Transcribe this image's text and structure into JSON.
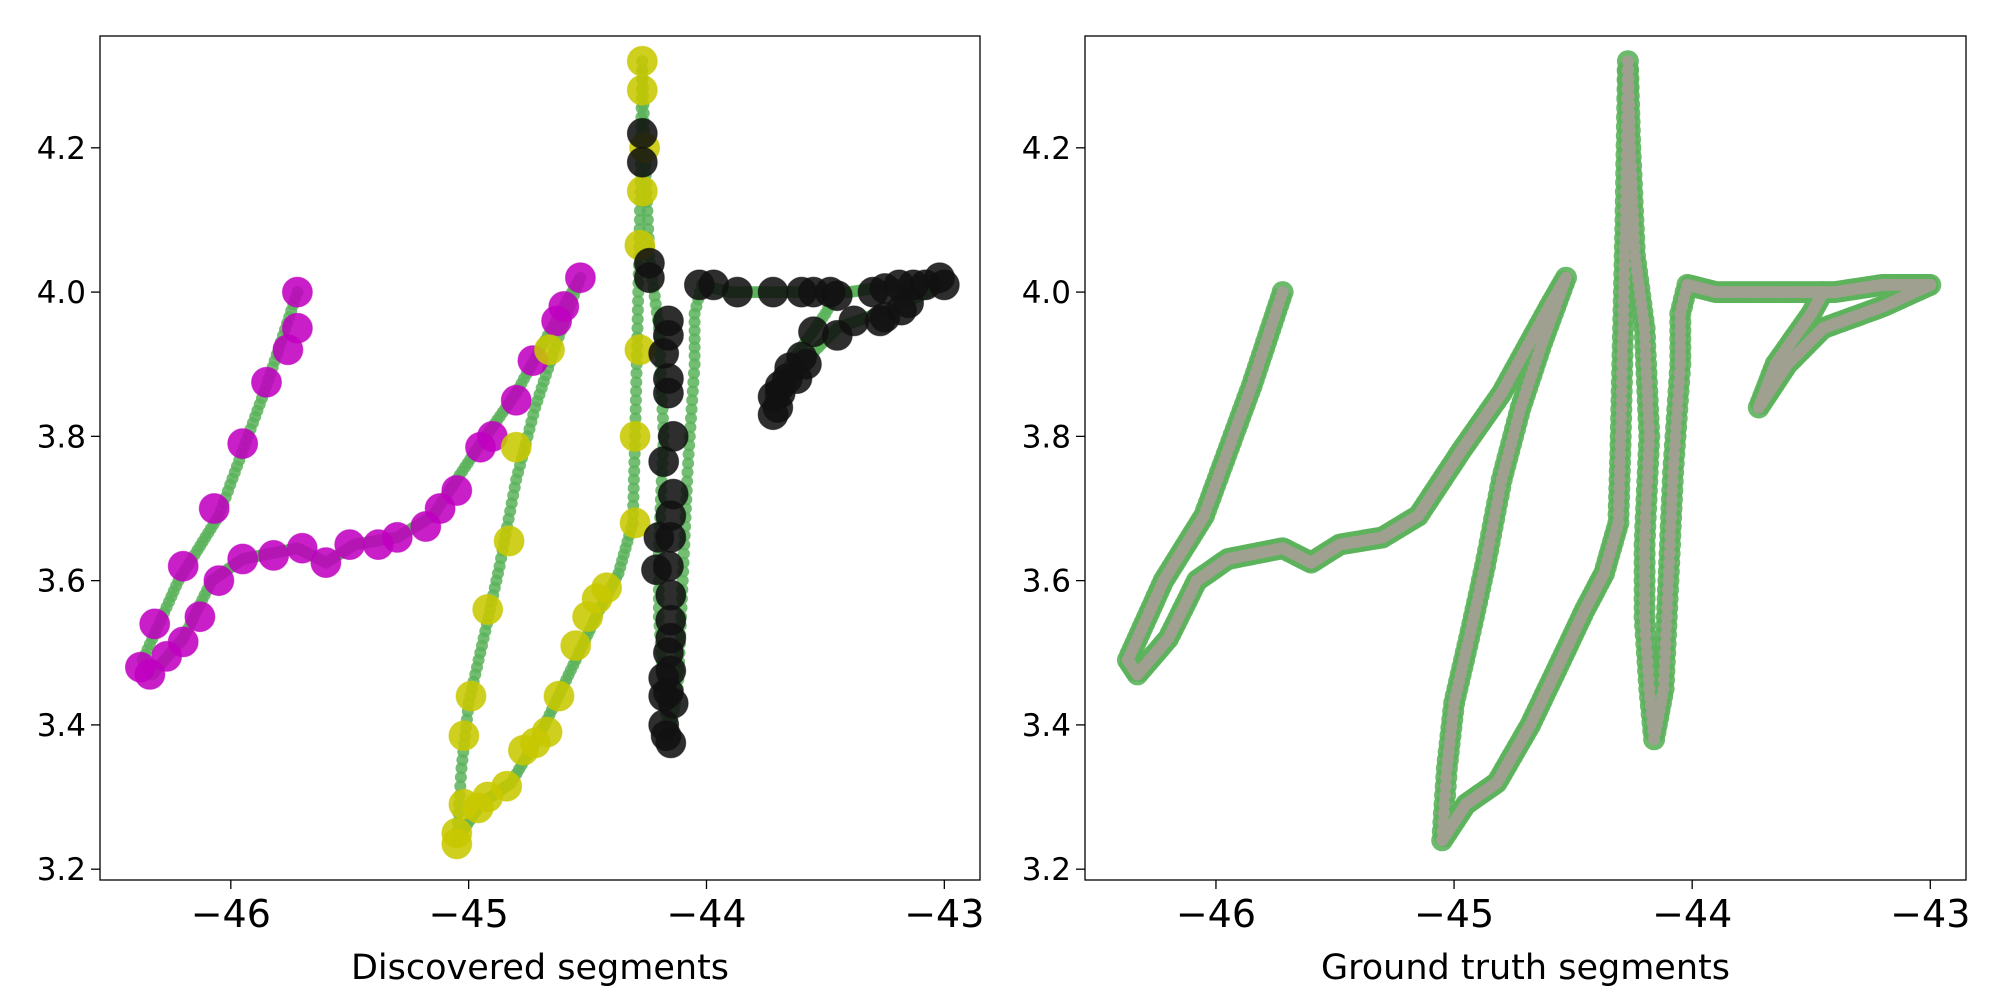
{
  "colors": {
    "track": "#5cb35c",
    "ground_truth_fill": "#a0a090",
    "magenta": "#c000c0",
    "yellow": "#c8c800",
    "black": "#111111"
  },
  "chart_data": [
    {
      "type": "scatter",
      "title": "",
      "xlabel": "Discovered segments",
      "ylabel": "",
      "xlim": [
        -46.55,
        -42.85
      ],
      "ylim": [
        3.185,
        4.355
      ],
      "x_ticks": [
        -46,
        -45,
        -44,
        -43
      ],
      "y_ticks": [
        3.2,
        3.4,
        3.6,
        3.8,
        4.0,
        4.2
      ],
      "x_tick_labels": [
        "−46",
        "−45",
        "−44",
        "−43"
      ],
      "y_tick_labels": [
        "3.2",
        "3.4",
        "3.6",
        "3.8",
        "4.0",
        "4.2"
      ],
      "grid": false,
      "series": [
        {
          "color": "magenta",
          "values": [
            [
              -45.72,
              4.0
            ],
            [
              -45.72,
              3.95
            ],
            [
              -45.76,
              3.92
            ],
            [
              -45.85,
              3.875
            ],
            [
              -45.95,
              3.79
            ],
            [
              -46.07,
              3.7
            ],
            [
              -46.2,
              3.62
            ],
            [
              -46.32,
              3.54
            ],
            [
              -46.38,
              3.48
            ],
            [
              -46.34,
              3.47
            ],
            [
              -46.27,
              3.495
            ],
            [
              -46.2,
              3.515
            ],
            [
              -46.13,
              3.55
            ],
            [
              -46.05,
              3.6
            ],
            [
              -45.95,
              3.63
            ],
            [
              -45.82,
              3.635
            ],
            [
              -45.7,
              3.645
            ],
            [
              -45.6,
              3.625
            ],
            [
              -45.5,
              3.65
            ],
            [
              -45.38,
              3.65
            ],
            [
              -45.3,
              3.66
            ],
            [
              -45.18,
              3.675
            ],
            [
              -45.12,
              3.7
            ],
            [
              -45.05,
              3.725
            ],
            [
              -44.95,
              3.785
            ],
            [
              -44.9,
              3.8
            ],
            [
              -44.8,
              3.85
            ],
            [
              -44.73,
              3.905
            ],
            [
              -44.63,
              3.96
            ],
            [
              -44.6,
              3.98
            ],
            [
              -44.53,
              4.02
            ]
          ]
        },
        {
          "color": "yellow",
          "values": [
            [
              -44.27,
              4.32
            ],
            [
              -44.27,
              4.28
            ],
            [
              -44.26,
              4.2
            ],
            [
              -44.27,
              4.14
            ],
            [
              -44.28,
              4.065
            ],
            [
              -44.28,
              3.92
            ],
            [
              -44.3,
              3.8
            ],
            [
              -44.3,
              3.68
            ],
            [
              -44.42,
              3.59
            ],
            [
              -44.46,
              3.575
            ],
            [
              -44.5,
              3.55
            ],
            [
              -44.55,
              3.51
            ],
            [
              -44.62,
              3.44
            ],
            [
              -44.67,
              3.39
            ],
            [
              -44.72,
              3.375
            ],
            [
              -44.77,
              3.365
            ],
            [
              -44.84,
              3.315
            ],
            [
              -44.92,
              3.3
            ],
            [
              -44.96,
              3.285
            ],
            [
              -45.02,
              3.29
            ],
            [
              -45.05,
              3.25
            ],
            [
              -45.05,
              3.235
            ],
            [
              -45.02,
              3.385
            ],
            [
              -44.99,
              3.44
            ],
            [
              -44.92,
              3.56
            ],
            [
              -44.83,
              3.655
            ],
            [
              -44.8,
              3.785
            ],
            [
              -44.66,
              3.92
            ]
          ]
        },
        {
          "color": "black",
          "values": [
            [
              -44.27,
              4.22
            ],
            [
              -44.27,
              4.18
            ],
            [
              -44.24,
              4.04
            ],
            [
              -44.24,
              4.02
            ],
            [
              -44.18,
              3.915
            ],
            [
              -44.16,
              3.96
            ],
            [
              -44.16,
              3.94
            ],
            [
              -44.16,
              3.88
            ],
            [
              -44.16,
              3.86
            ],
            [
              -44.14,
              3.8
            ],
            [
              -44.18,
              3.765
            ],
            [
              -44.2,
              3.66
            ],
            [
              -44.21,
              3.615
            ],
            [
              -44.14,
              3.72
            ],
            [
              -44.15,
              3.69
            ],
            [
              -44.15,
              3.66
            ],
            [
              -44.16,
              3.62
            ],
            [
              -44.15,
              3.58
            ],
            [
              -44.15,
              3.545
            ],
            [
              -44.15,
              3.52
            ],
            [
              -44.16,
              3.5
            ],
            [
              -44.15,
              3.475
            ],
            [
              -44.18,
              3.465
            ],
            [
              -44.16,
              3.445
            ],
            [
              -44.18,
              3.44
            ],
            [
              -44.14,
              3.43
            ],
            [
              -44.18,
              3.4
            ],
            [
              -44.17,
              3.385
            ],
            [
              -44.15,
              3.375
            ],
            [
              -44.03,
              4.01
            ],
            [
              -43.97,
              4.01
            ],
            [
              -43.87,
              4.0
            ],
            [
              -43.72,
              4.0
            ],
            [
              -43.6,
              4.0
            ],
            [
              -43.55,
              4.0
            ],
            [
              -43.48,
              4.0
            ],
            [
              -43.45,
              3.995
            ],
            [
              -43.38,
              3.96
            ],
            [
              -43.3,
              4.0
            ],
            [
              -43.25,
              4.005
            ],
            [
              -43.19,
              4.01
            ],
            [
              -43.13,
              4.01
            ],
            [
              -43.08,
              4.01
            ],
            [
              -43.02,
              4.02
            ],
            [
              -43.0,
              4.01
            ],
            [
              -43.15,
              3.985
            ],
            [
              -43.18,
              3.975
            ],
            [
              -43.25,
              3.965
            ],
            [
              -43.27,
              3.96
            ],
            [
              -43.45,
              3.94
            ],
            [
              -43.55,
              3.945
            ],
            [
              -43.58,
              3.9
            ],
            [
              -43.62,
              3.88
            ],
            [
              -43.65,
              3.895
            ],
            [
              -43.69,
              3.87
            ],
            [
              -43.72,
              3.855
            ],
            [
              -43.69,
              3.86
            ],
            [
              -43.66,
              3.88
            ],
            [
              -43.7,
              3.84
            ],
            [
              -43.72,
              3.83
            ],
            [
              -43.6,
              3.91
            ]
          ]
        }
      ],
      "track": [
        [
          -45.72,
          4.0
        ],
        [
          -45.85,
          3.87
        ],
        [
          -46.05,
          3.69
        ],
        [
          -46.22,
          3.6
        ],
        [
          -46.37,
          3.49
        ],
        [
          -46.33,
          3.47
        ],
        [
          -46.2,
          3.52
        ],
        [
          -46.08,
          3.6
        ],
        [
          -45.95,
          3.63
        ],
        [
          -45.72,
          3.645
        ],
        [
          -45.6,
          3.625
        ],
        [
          -45.48,
          3.65
        ],
        [
          -45.3,
          3.66
        ],
        [
          -45.15,
          3.69
        ],
        [
          -44.97,
          3.78
        ],
        [
          -44.8,
          3.86
        ],
        [
          -44.6,
          3.98
        ],
        [
          -44.53,
          4.02
        ],
        [
          -44.63,
          3.93
        ],
        [
          -44.72,
          3.84
        ],
        [
          -44.8,
          3.74
        ],
        [
          -44.87,
          3.62
        ],
        [
          -44.93,
          3.53
        ],
        [
          -45.0,
          3.43
        ],
        [
          -45.03,
          3.34
        ],
        [
          -45.05,
          3.24
        ],
        [
          -44.95,
          3.29
        ],
        [
          -44.82,
          3.32
        ],
        [
          -44.68,
          3.4
        ],
        [
          -44.55,
          3.49
        ],
        [
          -44.45,
          3.56
        ],
        [
          -44.37,
          3.61
        ],
        [
          -44.31,
          3.68
        ],
        [
          -44.3,
          3.8
        ],
        [
          -44.29,
          3.95
        ],
        [
          -44.28,
          4.1
        ],
        [
          -44.27,
          4.32
        ],
        [
          -44.26,
          4.2
        ],
        [
          -44.24,
          4.05
        ],
        [
          -44.2,
          3.95
        ],
        [
          -44.18,
          3.8
        ],
        [
          -44.2,
          3.65
        ],
        [
          -44.2,
          3.55
        ],
        [
          -44.18,
          3.45
        ],
        [
          -44.16,
          3.38
        ],
        [
          -44.12,
          3.45
        ],
        [
          -44.1,
          3.6
        ],
        [
          -44.08,
          3.75
        ],
        [
          -44.05,
          3.9
        ],
        [
          -44.05,
          3.97
        ],
        [
          -44.02,
          4.01
        ],
        [
          -43.9,
          4.0
        ],
        [
          -43.7,
          4.0
        ],
        [
          -43.4,
          4.0
        ],
        [
          -43.2,
          4.01
        ],
        [
          -43.0,
          4.01
        ],
        [
          -43.2,
          3.98
        ],
        [
          -43.45,
          3.95
        ],
        [
          -43.6,
          3.9
        ],
        [
          -43.72,
          3.84
        ],
        [
          -43.65,
          3.9
        ],
        [
          -43.5,
          3.97
        ],
        [
          -43.45,
          4.0
        ]
      ]
    },
    {
      "type": "scatter",
      "title": "",
      "xlabel": "Ground truth segments",
      "ylabel": "",
      "xlim": [
        -46.55,
        -42.85
      ],
      "ylim": [
        3.185,
        4.355
      ],
      "x_ticks": [
        -46,
        -45,
        -44,
        -43
      ],
      "y_ticks": [
        3.2,
        3.4,
        3.6,
        3.8,
        4.0,
        4.2
      ],
      "x_tick_labels": [
        "−46",
        "−45",
        "−44",
        "−43"
      ],
      "y_tick_labels": [
        "3.2",
        "3.4",
        "3.6",
        "3.8",
        "4.0",
        "4.2"
      ],
      "grid": false,
      "track": [
        [
          -45.72,
          4.0
        ],
        [
          -45.85,
          3.87
        ],
        [
          -46.05,
          3.69
        ],
        [
          -46.22,
          3.6
        ],
        [
          -46.37,
          3.49
        ],
        [
          -46.33,
          3.47
        ],
        [
          -46.2,
          3.52
        ],
        [
          -46.08,
          3.6
        ],
        [
          -45.95,
          3.63
        ],
        [
          -45.72,
          3.645
        ],
        [
          -45.6,
          3.625
        ],
        [
          -45.48,
          3.65
        ],
        [
          -45.3,
          3.66
        ],
        [
          -45.15,
          3.69
        ],
        [
          -44.97,
          3.78
        ],
        [
          -44.8,
          3.86
        ],
        [
          -44.6,
          3.98
        ],
        [
          -44.53,
          4.02
        ],
        [
          -44.63,
          3.93
        ],
        [
          -44.72,
          3.84
        ],
        [
          -44.8,
          3.74
        ],
        [
          -44.87,
          3.62
        ],
        [
          -44.93,
          3.53
        ],
        [
          -45.0,
          3.43
        ],
        [
          -45.03,
          3.34
        ],
        [
          -45.05,
          3.24
        ],
        [
          -44.95,
          3.29
        ],
        [
          -44.82,
          3.32
        ],
        [
          -44.68,
          3.4
        ],
        [
          -44.55,
          3.49
        ],
        [
          -44.45,
          3.56
        ],
        [
          -44.37,
          3.61
        ],
        [
          -44.31,
          3.68
        ],
        [
          -44.3,
          3.8
        ],
        [
          -44.29,
          3.95
        ],
        [
          -44.28,
          4.1
        ],
        [
          -44.27,
          4.32
        ],
        [
          -44.26,
          4.2
        ],
        [
          -44.24,
          4.05
        ],
        [
          -44.2,
          3.95
        ],
        [
          -44.18,
          3.8
        ],
        [
          -44.2,
          3.65
        ],
        [
          -44.2,
          3.55
        ],
        [
          -44.18,
          3.45
        ],
        [
          -44.16,
          3.38
        ],
        [
          -44.12,
          3.45
        ],
        [
          -44.1,
          3.6
        ],
        [
          -44.08,
          3.75
        ],
        [
          -44.05,
          3.9
        ],
        [
          -44.05,
          3.97
        ],
        [
          -44.02,
          4.01
        ],
        [
          -43.9,
          4.0
        ],
        [
          -43.7,
          4.0
        ],
        [
          -43.4,
          4.0
        ],
        [
          -43.2,
          4.01
        ],
        [
          -43.0,
          4.01
        ],
        [
          -43.2,
          3.98
        ],
        [
          -43.45,
          3.95
        ],
        [
          -43.6,
          3.9
        ],
        [
          -43.72,
          3.84
        ],
        [
          -43.65,
          3.9
        ],
        [
          -43.5,
          3.97
        ],
        [
          -43.45,
          4.0
        ]
      ]
    }
  ]
}
